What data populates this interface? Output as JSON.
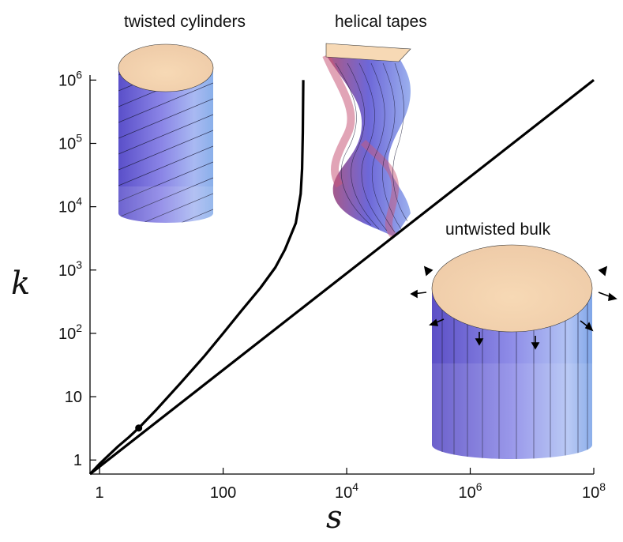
{
  "chart_data": {
    "type": "line",
    "xlabel": "s",
    "ylabel": "k",
    "xscale": "log",
    "yscale": "log",
    "xlim": [
      0.7,
      100000000
    ],
    "ylim": [
      0.6,
      1200000
    ],
    "grid": false,
    "legend": "none",
    "x_ticks": [
      {
        "value": 1,
        "label": "1"
      },
      {
        "value": 100,
        "label": "100"
      },
      {
        "value": 10000,
        "base": "10",
        "exp": "4"
      },
      {
        "value": 1000000,
        "base": "10",
        "exp": "6"
      },
      {
        "value": 100000000,
        "base": "10",
        "exp": "8"
      }
    ],
    "y_ticks": [
      {
        "value": 1,
        "label": "1"
      },
      {
        "value": 10,
        "label": "10"
      },
      {
        "value": 100,
        "base": "10",
        "exp": "2"
      },
      {
        "value": 1000,
        "base": "10",
        "exp": "3"
      },
      {
        "value": 10000,
        "base": "10",
        "exp": "4"
      },
      {
        "value": 100000,
        "base": "10",
        "exp": "5"
      },
      {
        "value": 1000000,
        "base": "10",
        "exp": "6"
      }
    ],
    "series": [
      {
        "x": [
          0.7,
          1,
          2,
          3,
          4.3,
          8,
          20,
          50,
          100,
          200,
          400,
          700,
          1000,
          1500,
          1800,
          1900,
          1950,
          1985
        ],
        "y": [
          0.6,
          0.87,
          1.65,
          2.3,
          3.2,
          6,
          16,
          44,
          100,
          230,
          520,
          1100,
          2100,
          5500,
          16000,
          40000,
          150000,
          1000000
        ]
      },
      {
        "x": [
          0.7,
          100000000
        ],
        "y": [
          0.6,
          1000000
        ]
      }
    ],
    "points": [
      {
        "x": 4.3,
        "y": 3.2
      }
    ],
    "annotations": [
      {
        "text": "twisted cylinders"
      },
      {
        "text": "helical tapes"
      },
      {
        "text": "untwisted bulk"
      }
    ]
  },
  "colors": {
    "curve": "#000000",
    "cylinder_side": "#6a6ad8",
    "cylinder_top": "#f7d9b6",
    "tape_red": "#c95a7a"
  }
}
